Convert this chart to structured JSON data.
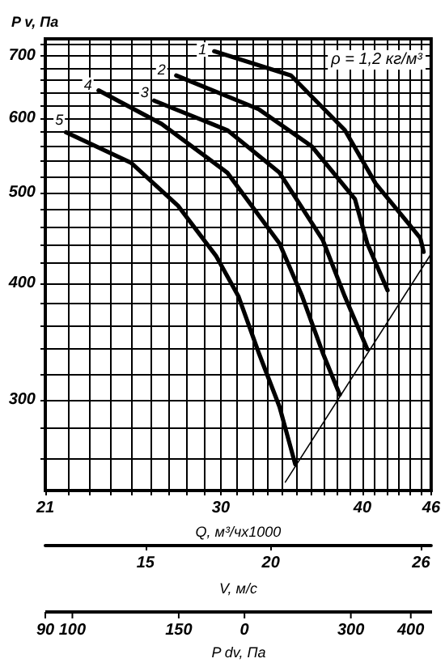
{
  "chart_data": [
    {
      "type": "line",
      "xlabel": "Q, м³/чх1000",
      "ylabel": "P v, Па",
      "x2label": "V, м/с",
      "log": "xy",
      "grid": true,
      "marker": "none",
      "line_style": "solid",
      "xlim": [
        21,
        46
      ],
      "xticks": [
        21,
        {
          "value": 22,
          "label": null
        },
        {
          "value": 23,
          "label": null
        },
        {
          "value": 24,
          "label": null
        },
        {
          "value": 25,
          "label": null
        },
        {
          "value": 26,
          "label": null
        },
        {
          "value": 27,
          "label": null
        },
        {
          "value": 28,
          "label": null
        },
        {
          "value": 29,
          "label": null
        },
        30,
        {
          "value": 31,
          "label": null
        },
        {
          "value": 32,
          "label": null
        },
        {
          "value": 33,
          "label": null
        },
        {
          "value": 34,
          "label": null
        },
        {
          "value": 35,
          "label": null
        },
        {
          "value": 36,
          "label": null
        },
        {
          "value": 37,
          "label": null
        },
        {
          "value": 38,
          "label": null
        },
        {
          "value": 39,
          "label": null
        },
        40,
        {
          "value": 41,
          "label": null
        },
        {
          "value": 42,
          "label": null
        },
        {
          "value": 43,
          "label": null
        },
        {
          "value": 44,
          "label": null
        },
        {
          "value": 45,
          "label": null
        },
        46
      ],
      "ylim": [
        240,
        730
      ],
      "yticks": [
        {
          "value": 260,
          "label": null
        },
        {
          "value": 280,
          "label": null
        },
        300,
        {
          "value": 320,
          "label": null
        },
        {
          "value": 340,
          "label": null
        },
        {
          "value": 360,
          "label": null
        },
        {
          "value": 380,
          "label": null
        },
        400,
        {
          "value": 420,
          "label": null
        },
        {
          "value": 440,
          "label": null
        },
        {
          "value": 460,
          "label": null
        },
        {
          "value": 480,
          "label": null
        },
        500,
        {
          "value": 520,
          "label": null
        },
        {
          "value": 540,
          "label": null
        },
        {
          "value": 560,
          "label": null
        },
        {
          "value": 580,
          "label": null
        },
        600,
        {
          "value": 620,
          "label": null
        },
        {
          "value": 640,
          "label": null
        },
        {
          "value": 660,
          "label": null
        },
        {
          "value": 680,
          "label": null
        },
        700,
        {
          "value": 720,
          "label": null
        }
      ],
      "x2lim": [
        11,
        26.4
      ],
      "x2ticks": [
        15,
        20,
        26
      ],
      "series": [
        {
          "color": "#000000",
          "x": [
            29.6,
            34.6,
            38.6,
            41.1,
            45.0,
            45.3
          ],
          "values": [
            708,
            667,
            583,
            511,
            447,
            432
          ]
        },
        {
          "color": "#000000",
          "x": [
            27.4,
            32.4,
            36.1,
            39.4,
            40.4,
            42.1
          ],
          "values": [
            667,
            614,
            560,
            492,
            441,
            393
          ]
        },
        {
          "color": "#000000",
          "x": [
            26.2,
            30.4,
            33.8,
            36.9,
            38.6,
            40.4
          ],
          "values": [
            627,
            583,
            525,
            445,
            387,
            340
          ]
        },
        {
          "color": "#000000",
          "x": [
            23.4,
            26.6,
            30.4,
            33.8,
            35.4,
            36.9,
            38.2
          ],
          "values": [
            643,
            592,
            525,
            441,
            387,
            337,
            304
          ]
        },
        {
          "color": "#000000",
          "x": [
            21.9,
            25.0,
            27.5,
            29.7,
            31.1,
            32.4,
            33.8,
            34.9
          ],
          "values": [
            580,
            538,
            484,
            428,
            387,
            337,
            295,
            256
          ]
        },
        {
          "color": "#000000",
          "x": [
            34.2,
            46
          ],
          "values": [
            245,
            430
          ]
        }
      ],
      "annotations": [
        {
          "text": "1",
          "x": 28.9,
          "y": 711
        },
        {
          "text": "2",
          "x": 26.6,
          "y": 677
        },
        {
          "text": "3",
          "x": 25.7,
          "y": 640
        },
        {
          "text": "4",
          "x": 22.9,
          "y": 652
        },
        {
          "text": "5",
          "x": 21.6,
          "y": 598
        },
        "ρ = 1,2 кг/м³"
      ]
    },
    {
      "type": "other",
      "xlabel": "P dv, Па",
      "annotations": [
        "90",
        "100",
        "150",
        "0",
        "300",
        "400"
      ]
    }
  ]
}
